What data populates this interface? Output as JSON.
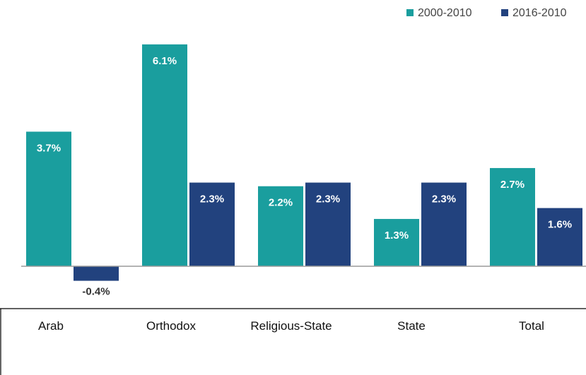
{
  "chart_data": {
    "type": "bar",
    "categories": [
      "Arab",
      "Orthodox",
      "Religious-State",
      "State",
      "Total"
    ],
    "series": [
      {
        "name": "2000-2010",
        "values": [
          3.7,
          6.1,
          2.2,
          1.3,
          2.7
        ],
        "labels": [
          "3.7%",
          "6.1%",
          "2.2%",
          "1.3%",
          "2.7%"
        ],
        "color": "#1a9e9e"
      },
      {
        "name": "2016-2010",
        "values": [
          -0.4,
          2.3,
          2.3,
          2.3,
          1.6
        ],
        "labels": [
          "-0.4%",
          "2.3%",
          "2.3%",
          "2.3%",
          "1.6%"
        ],
        "color": "#22427e"
      }
    ],
    "title": "",
    "xlabel": "",
    "ylabel": "",
    "legend": "top-right",
    "grid": false,
    "axis_color": "#9a9a9a",
    "label_color_inside": "#ffffff",
    "label_color_outside": "#333333"
  }
}
